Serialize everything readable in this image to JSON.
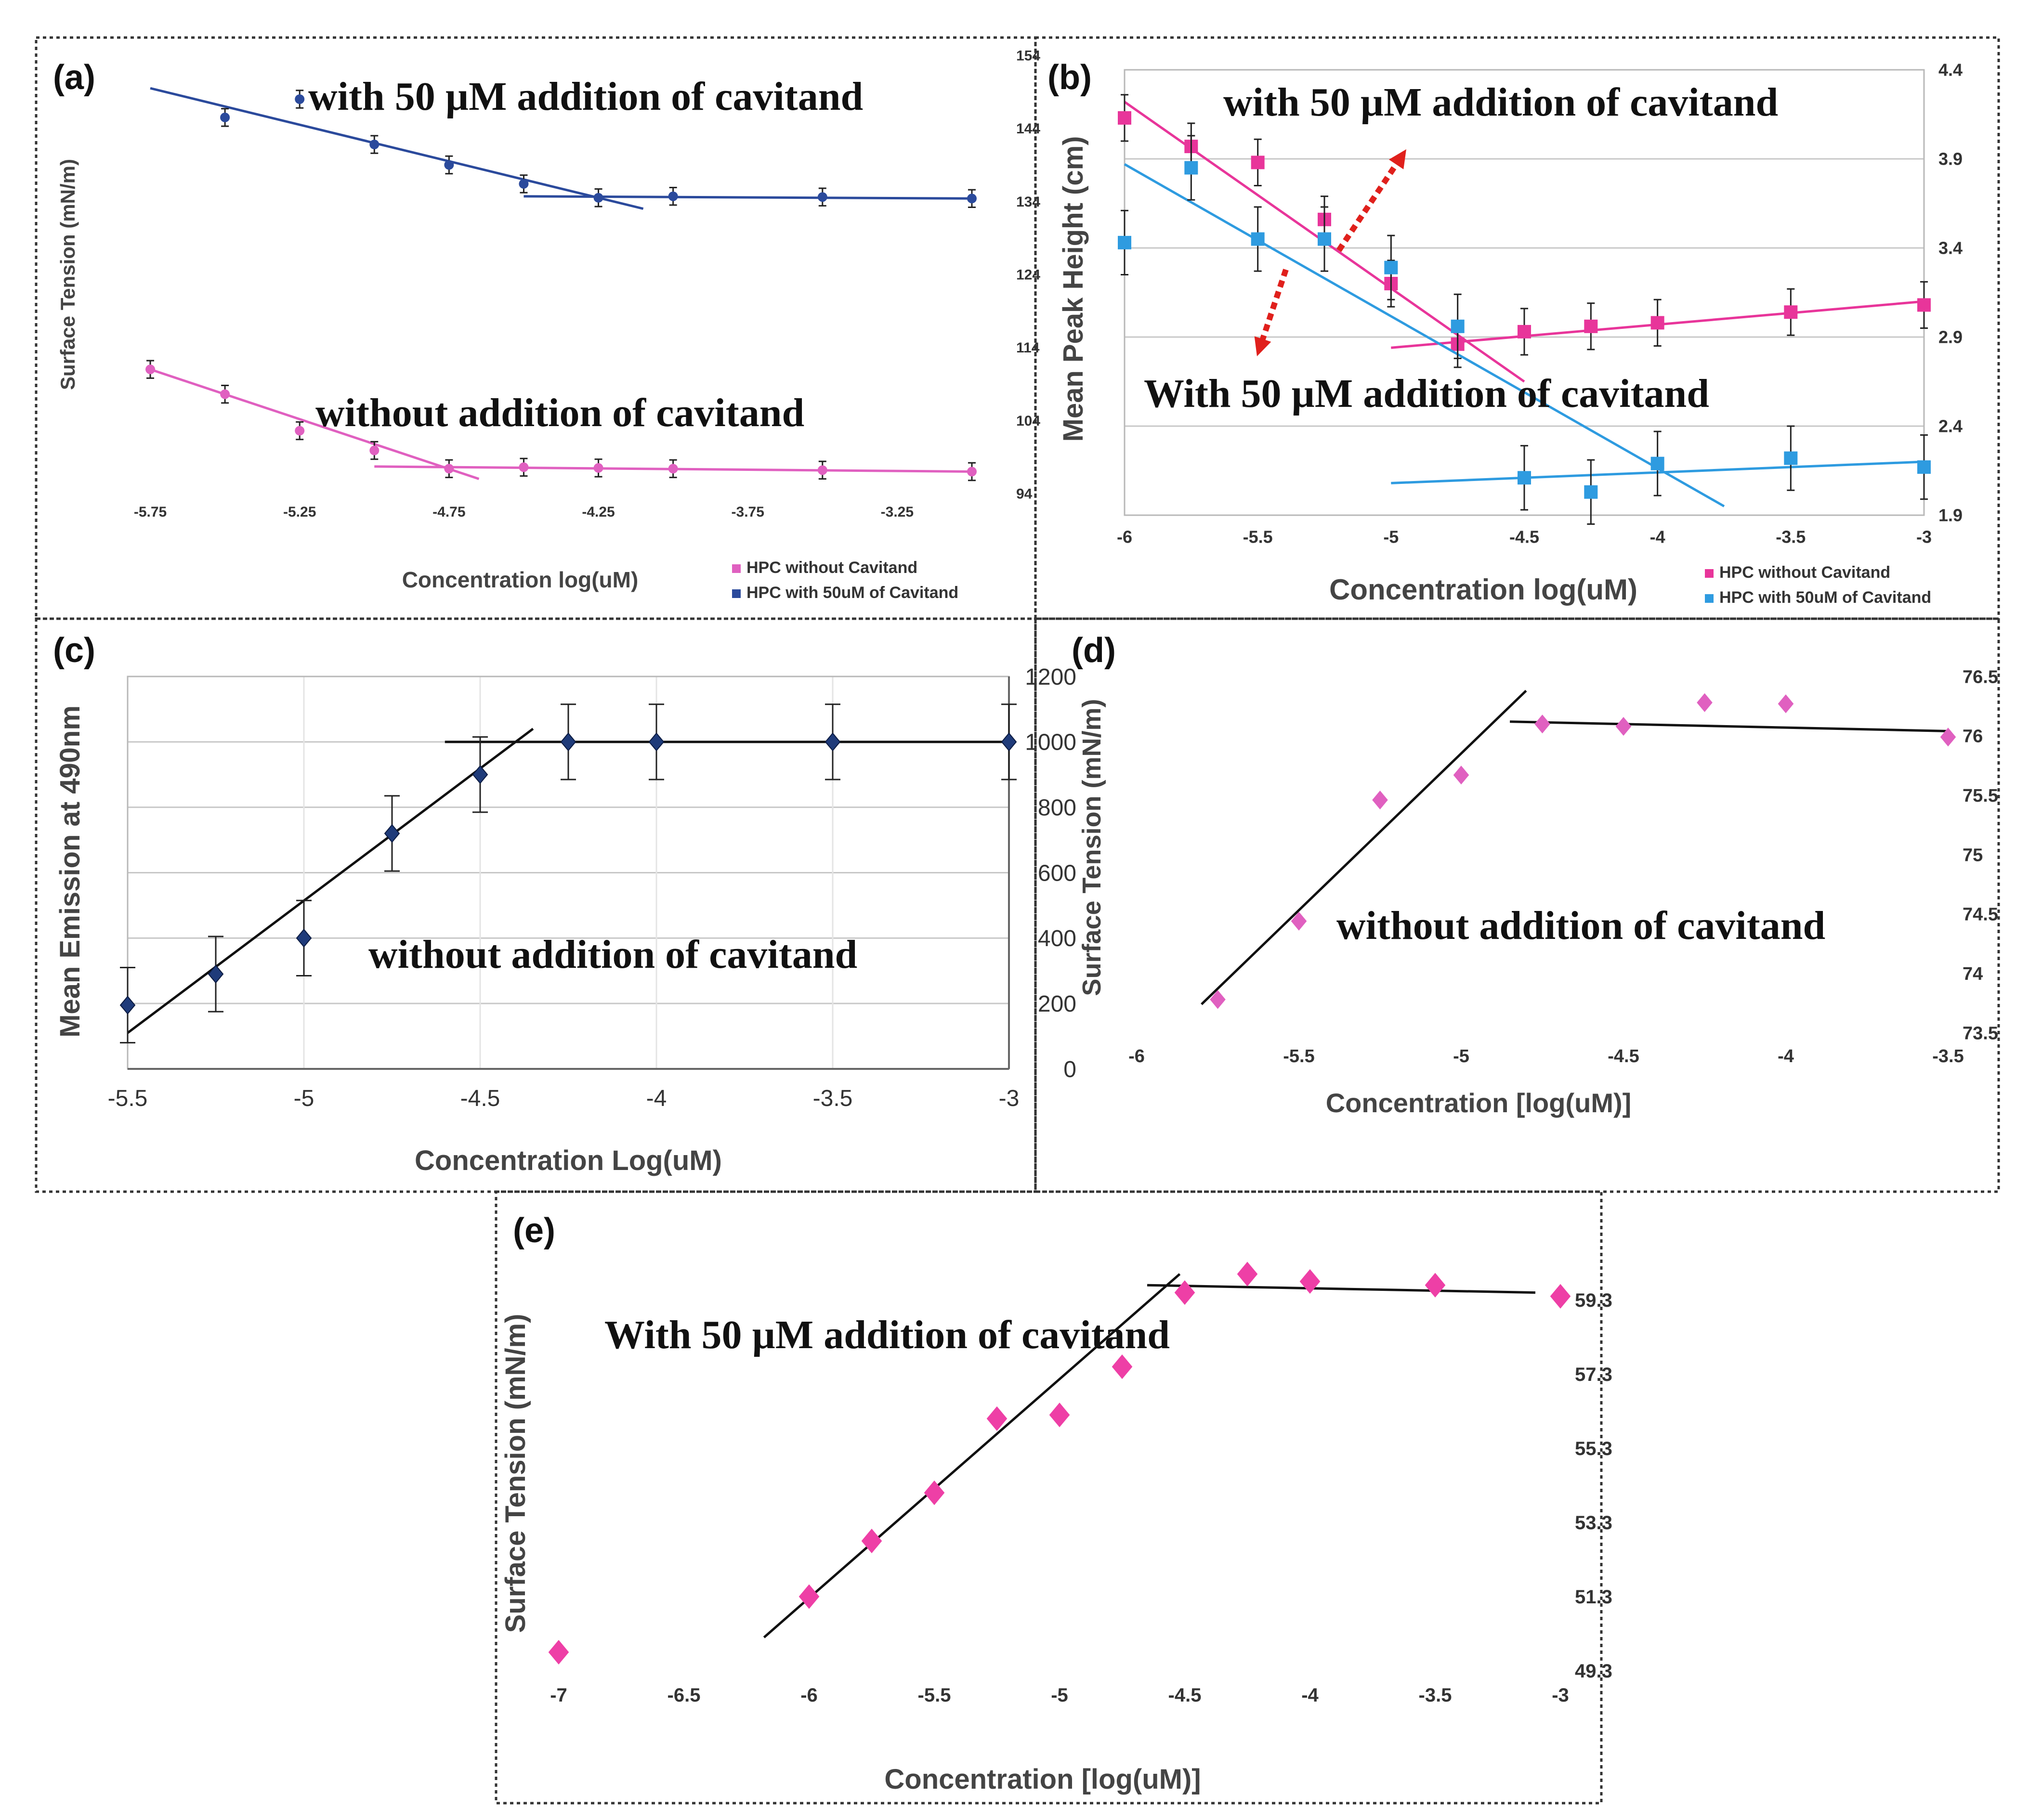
{
  "figure": {
    "description_free": true
  },
  "chart_data": [
    {
      "id": "a",
      "panel_label": "(a)",
      "type": "scatter",
      "xlabel": "Concentration log(uM)",
      "ylabel": "Surface Tension (mN/m)",
      "xlim": [
        -5.85,
        -2.9
      ],
      "ylim": [
        94,
        154
      ],
      "xticks": [
        -5.75,
        -5.25,
        -4.75,
        -4.25,
        -3.75,
        -3.25
      ],
      "xtick_labels": [
        "-5.75",
        "-5.25",
        "-4.75",
        "-4.25",
        "-3.75",
        "-3.25"
      ],
      "yticks": [
        94,
        104,
        114,
        124,
        134,
        144,
        154
      ],
      "ytick_labels": [
        "94",
        "104",
        "114",
        "124",
        "134",
        "144",
        "154"
      ],
      "legend": [
        "HPC without Cavitand",
        "HPC with 50uM of Cavitand"
      ],
      "annotations": [
        "with 50 µM addition of cavitand",
        "without addition of cavitand"
      ],
      "series": [
        {
          "name": "HPC with 50uM of Cavitand",
          "color": "#2b4a9c",
          "x": [
            -5.5,
            -5.25,
            -5.0,
            -4.75,
            -4.5,
            -4.25,
            -4.0,
            -3.5,
            -3.0
          ],
          "y": [
            145.5,
            148.0,
            141.8,
            139.0,
            136.4,
            134.5,
            134.7,
            134.6,
            134.4
          ],
          "err": 1.2,
          "fits": [
            {
              "x": [
                -5.75,
                -4.1
              ],
              "y": [
                149.5,
                133.0
              ]
            },
            {
              "x": [
                -4.5,
                -3.0
              ],
              "y": [
                134.7,
                134.4
              ]
            }
          ]
        },
        {
          "name": "HPC without Cavitand",
          "color": "#e060c0",
          "x": [
            -5.75,
            -5.5,
            -5.25,
            -5.0,
            -4.75,
            -4.5,
            -4.25,
            -4.0,
            -3.5,
            -3.0
          ],
          "y": [
            111.0,
            107.6,
            102.6,
            99.9,
            97.4,
            97.6,
            97.5,
            97.4,
            97.2,
            97.0
          ],
          "err": 1.2,
          "fits": [
            {
              "x": [
                -5.75,
                -4.65
              ],
              "y": [
                111.0,
                96.0
              ]
            },
            {
              "x": [
                -5.0,
                -3.0
              ],
              "y": [
                97.7,
                97.0
              ]
            }
          ]
        }
      ]
    },
    {
      "id": "b",
      "panel_label": "(b)",
      "type": "scatter",
      "xlabel": "Concentration log(uM)",
      "ylabel": "Mean Peak Height (cm)",
      "xlim": [
        -6.0,
        -3.0
      ],
      "ylim": [
        1.9,
        4.4
      ],
      "xticks": [
        -6,
        -5.5,
        -5,
        -4.5,
        -4,
        -3.5,
        -3
      ],
      "xtick_labels": [
        "-6",
        "-5.5",
        "-5",
        "-4.5",
        "-4",
        "-3.5",
        "-3"
      ],
      "yticks": [
        1.9,
        2.4,
        2.9,
        3.4,
        3.9,
        4.4
      ],
      "ytick_labels": [
        "1.9",
        "2.4",
        "2.9",
        "3.4",
        "3.9",
        "4.4"
      ],
      "legend": [
        "HPC without Cavitand",
        "HPC with 50uM of Cavitand"
      ],
      "annotations": [
        "with 50 µM addition of cavitand",
        "With 50 µM addition of cavitand"
      ],
      "series": [
        {
          "name": "HPC without Cavitand",
          "color": "#e8359a",
          "x": [
            -6.0,
            -5.75,
            -5.5,
            -5.25,
            -5.0,
            -4.75,
            -4.5,
            -4.25,
            -4.0,
            -3.5,
            -3.0
          ],
          "y": [
            4.13,
            3.97,
            3.88,
            3.56,
            3.2,
            2.86,
            2.93,
            2.96,
            2.98,
            3.04,
            3.08
          ],
          "err": 0.13,
          "fits": [
            {
              "x": [
                -6.0,
                -4.5
              ],
              "y": [
                4.22,
                2.65
              ]
            },
            {
              "x": [
                -5.0,
                -3.0
              ],
              "y": [
                2.84,
                3.1
              ]
            }
          ]
        },
        {
          "name": "HPC with 50uM of Cavitand",
          "color": "#2e9be0",
          "x": [
            -6.0,
            -5.75,
            -5.5,
            -5.25,
            -5.0,
            -4.75,
            -4.5,
            -4.25,
            -4.0,
            -3.5,
            -3.0
          ],
          "y": [
            3.43,
            3.85,
            3.45,
            3.45,
            3.29,
            2.96,
            2.11,
            2.03,
            2.19,
            2.22,
            2.17
          ],
          "err": 0.18,
          "fits": [
            {
              "x": [
                -6.0,
                -3.75
              ],
              "y": [
                3.87,
                1.95
              ]
            },
            {
              "x": [
                -5.0,
                -3.0
              ],
              "y": [
                2.08,
                2.2
              ]
            }
          ]
        }
      ]
    },
    {
      "id": "c",
      "panel_label": "(c)",
      "type": "scatter",
      "xlabel": "Concentration Log(uM)",
      "ylabel": "Mean Emission at 490nm",
      "xlim": [
        -5.5,
        -3.0
      ],
      "ylim": [
        0,
        1200
      ],
      "xticks": [
        -5.5,
        -5,
        -4.5,
        -4,
        -3.5,
        -3
      ],
      "xtick_labels": [
        "-5.5",
        "-5",
        "-4.5",
        "-4",
        "-3.5",
        "-3"
      ],
      "yticks": [
        0,
        200,
        400,
        600,
        800,
        1000,
        1200
      ],
      "ytick_labels": [
        "0",
        "200",
        "400",
        "600",
        "800",
        "1000",
        "1200"
      ],
      "annotations": [
        "without addition of cavitand"
      ],
      "series": [
        {
          "name": "Mean Emission",
          "color": "#1f3b7a",
          "x": [
            -5.5,
            -5.25,
            -5.0,
            -4.75,
            -4.5,
            -4.25,
            -4.0,
            -3.5,
            -3.0
          ],
          "y": [
            195,
            290,
            400,
            720,
            900,
            1000,
            1000,
            1000,
            1000
          ],
          "err": 115,
          "fits": [
            {
              "x": [
                -5.5,
                -4.35
              ],
              "y": [
                110,
                1040
              ]
            },
            {
              "x": [
                -4.6,
                -3.0
              ],
              "y": [
                1000,
                1000
              ]
            }
          ]
        }
      ]
    },
    {
      "id": "d",
      "panel_label": "(d)",
      "type": "scatter",
      "xlabel": "Concentration [log(uM)]",
      "ylabel": "Surface Tension (mN/m)",
      "xlim": [
        -6.0,
        -3.5
      ],
      "ylim": [
        73.5,
        76.5
      ],
      "xticks": [
        -6,
        -5.5,
        -5,
        -4.5,
        -4,
        -3.5
      ],
      "xtick_labels": [
        "-6",
        "-5.5",
        "-5",
        "-4.5",
        "-4",
        "-3.5"
      ],
      "yticks": [
        73.5,
        74,
        74.5,
        75,
        75.5,
        76,
        76.5
      ],
      "ytick_labels": [
        "73.5",
        "74",
        "74.5",
        "75",
        "75.5",
        "76",
        "76.5"
      ],
      "annotations": [
        "without addition of cavitand"
      ],
      "series": [
        {
          "name": "Surface Tension",
          "color": "#e060c0",
          "x": [
            -5.75,
            -5.5,
            -5.25,
            -5.0,
            -4.75,
            -4.5,
            -4.25,
            -4.0,
            -3.5
          ],
          "y": [
            73.78,
            74.44,
            75.46,
            75.67,
            76.1,
            76.08,
            76.28,
            76.27,
            75.99
          ],
          "fits": [
            {
              "x": [
                -5.8,
                -4.8
              ],
              "y": [
                73.74,
                76.38
              ]
            },
            {
              "x": [
                -4.85,
                -3.5
              ],
              "y": [
                76.12,
                76.04
              ]
            }
          ]
        }
      ]
    },
    {
      "id": "e",
      "panel_label": "(e)",
      "type": "scatter",
      "xlabel": "Concentration [log(uM)]",
      "ylabel": "Surface Tension (mN/m)",
      "xlim": [
        -7.0,
        -3.0
      ],
      "ylim": [
        49.3,
        59.3
      ],
      "xticks": [
        -7,
        -6.5,
        -6,
        -5.5,
        -5,
        -4.5,
        -4,
        -3.5,
        -3
      ],
      "xtick_labels": [
        "-7",
        "-6.5",
        "-6",
        "-5.5",
        "-5",
        "-4.5",
        "-4",
        "-3.5",
        "-3"
      ],
      "yticks": [
        49.3,
        51.3,
        53.3,
        55.3,
        57.3,
        59.3
      ],
      "ytick_labels": [
        "49.3",
        "51.3",
        "53.3",
        "55.3",
        "57.3",
        "59.3"
      ],
      "annotations": [
        "With 50 µM addition of cavitand"
      ],
      "series": [
        {
          "name": "Surface Tension",
          "color": "#ee3fa6",
          "x": [
            -7.0,
            -6.0,
            -5.75,
            -5.5,
            -5.25,
            -5.0,
            -4.75,
            -4.5,
            -4.25,
            -4.0,
            -3.5,
            -3.0
          ],
          "y": [
            49.8,
            51.3,
            52.8,
            54.1,
            56.1,
            56.2,
            57.5,
            59.5,
            60.0,
            59.8,
            59.7,
            59.4
          ],
          "fits": [
            {
              "x": [
                -6.18,
                -4.52
              ],
              "y": [
                50.2,
                60.0
              ]
            },
            {
              "x": [
                -4.65,
                -3.1
              ],
              "y": [
                59.7,
                59.5
              ]
            }
          ]
        }
      ]
    }
  ]
}
